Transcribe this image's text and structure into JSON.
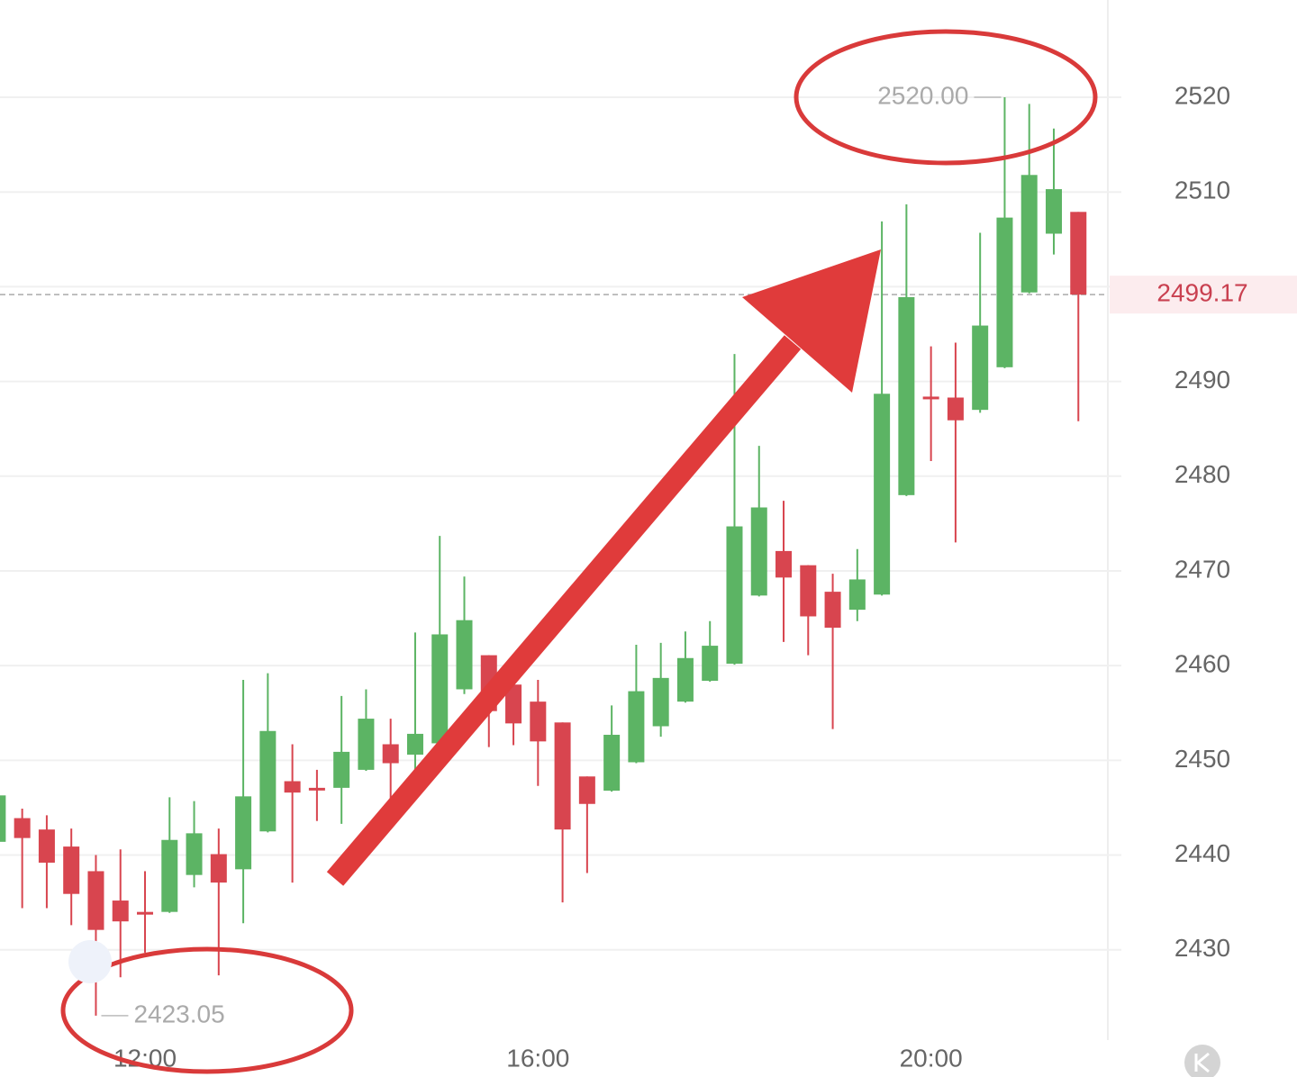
{
  "chart_data": {
    "type": "candlestick",
    "categories": [
      null,
      null,
      null,
      null,
      null,
      null,
      "12:00",
      null,
      null,
      null,
      null,
      null,
      null,
      null,
      null,
      null,
      null,
      null,
      null,
      null,
      null,
      null,
      "16:00",
      null,
      null,
      null,
      null,
      null,
      null,
      null,
      null,
      null,
      null,
      null,
      null,
      null,
      null,
      null,
      "20:00",
      null,
      null,
      null,
      null,
      null,
      null
    ],
    "open": [
      2441.4,
      2443.9,
      2442.7,
      2440.9,
      2438.3,
      2435.2,
      2434.0,
      2434.0,
      2437.9,
      2440.1,
      2438.5,
      2442.5,
      2447.8,
      2447.1,
      2447.1,
      2449.0,
      2451.7,
      2450.6,
      2451.8,
      2457.5,
      2461.1,
      2458.0,
      2456.2,
      2454.0,
      2448.3,
      2446.8,
      2449.8,
      2453.6,
      2456.2,
      2458.4,
      2460.2,
      2467.4,
      2472.1,
      2470.6,
      2467.8,
      2465.9,
      2467.5,
      2478.0,
      2488.4,
      2488.3,
      2487.0,
      2491.5,
      2499.4,
      2505.6,
      2507.9
    ],
    "high": [
      2450.6,
      2444.9,
      2444.2,
      2442.8,
      2440.0,
      2440.6,
      2438.3,
      2446.1,
      2445.7,
      2442.8,
      2458.5,
      2459.2,
      2451.7,
      2449.0,
      2456.8,
      2457.5,
      2454.4,
      2463.5,
      2473.7,
      2469.4,
      2461.1,
      2459.4,
      2458.5,
      2454.0,
      2448.3,
      2455.8,
      2462.2,
      2462.4,
      2463.6,
      2464.7,
      2492.9,
      2483.2,
      2477.4,
      2470.6,
      2469.7,
      2472.3,
      2506.9,
      2508.7,
      2493.7,
      2494.1,
      2505.7,
      2520.0,
      2519.3,
      2516.7,
      2507.9
    ],
    "low": [
      2441.3,
      2434.4,
      2434.4,
      2432.6,
      2423.05,
      2427.1,
      2429.7,
      2433.9,
      2436.6,
      2427.3,
      2432.8,
      2442.4,
      2437.1,
      2443.6,
      2443.3,
      2448.9,
      2445.7,
      2448.5,
      2451.4,
      2457.0,
      2451.4,
      2451.6,
      2447.3,
      2435.0,
      2438.1,
      2446.7,
      2449.7,
      2452.5,
      2456.1,
      2458.3,
      2460.1,
      2467.3,
      2462.5,
      2461.1,
      2453.3,
      2464.7,
      2467.4,
      2477.9,
      2481.6,
      2473.0,
      2486.7,
      2491.4,
      2499.3,
      2503.4,
      2485.8
    ],
    "close": [
      2446.3,
      2441.8,
      2439.2,
      2435.9,
      2432.1,
      2433.0,
      2433.9,
      2441.6,
      2442.3,
      2437.1,
      2446.2,
      2453.1,
      2446.6,
      2447.0,
      2450.9,
      2454.4,
      2449.7,
      2452.8,
      2463.3,
      2464.8,
      2455.2,
      2453.9,
      2452.0,
      2442.7,
      2445.4,
      2452.7,
      2457.3,
      2458.7,
      2460.8,
      2462.1,
      2474.7,
      2476.7,
      2469.3,
      2465.2,
      2464.0,
      2469.1,
      2488.7,
      2498.9,
      2488.3,
      2485.9,
      2495.9,
      2507.3,
      2511.8,
      2510.3,
      2499.17
    ],
    "up_color": "#5cb464",
    "down_color": "#d8454f",
    "ylim": [
      2420.47,
      2530.27
    ],
    "yticks": [
      2430,
      2440,
      2450,
      2460,
      2470,
      2480,
      2490,
      2500,
      2510,
      2520
    ],
    "ytick_labels_shown": [
      2430,
      2440,
      2450,
      2460,
      2470,
      2480,
      2490,
      2510,
      2520
    ],
    "grid": true,
    "high_marker": {
      "value": 2520,
      "label": "2520.00"
    },
    "low_marker": 2423.05,
    "last_price": 2499.17
  }
}
